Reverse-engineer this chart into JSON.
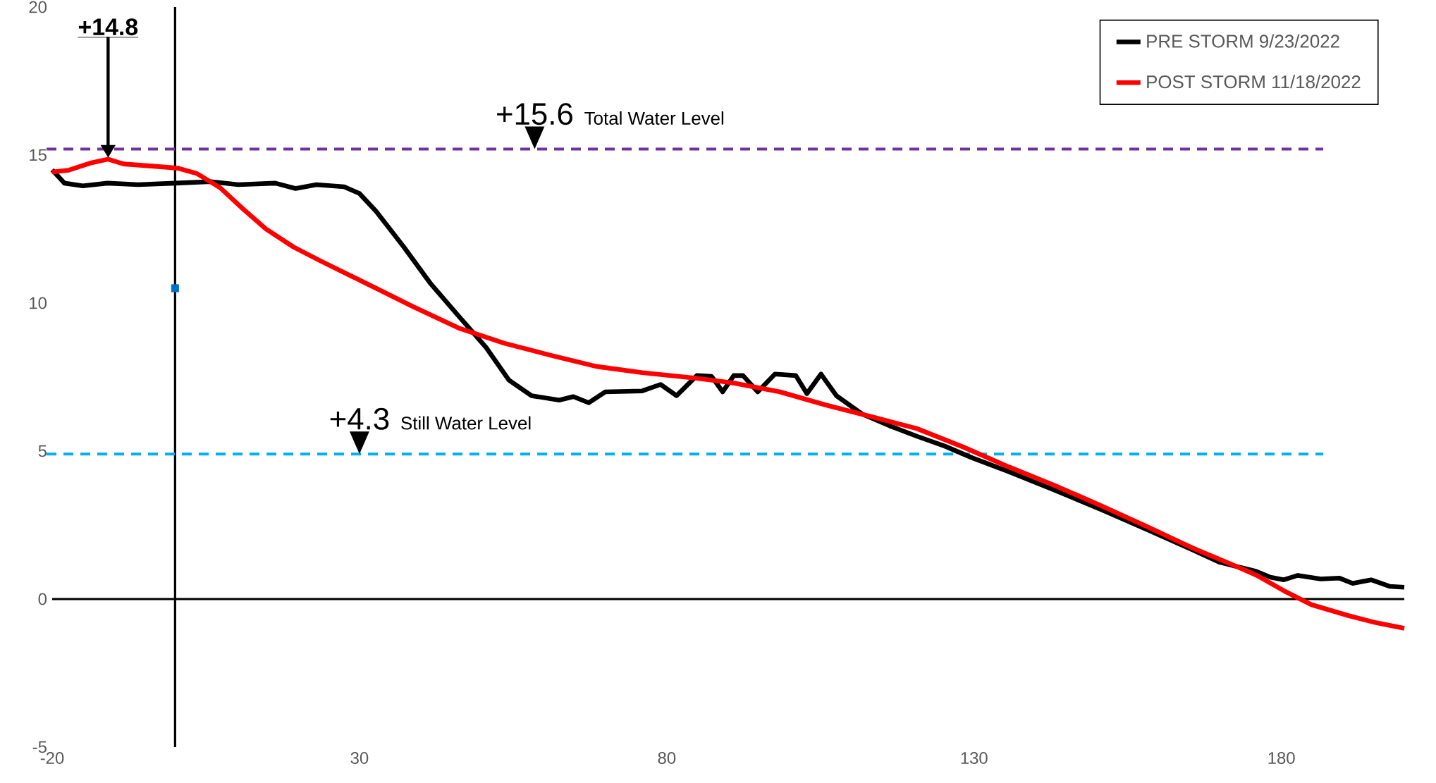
{
  "chart_data": {
    "type": "line",
    "xlim": [
      -20,
      200
    ],
    "ylim": [
      -5,
      20
    ],
    "xticks": [
      -20,
      30,
      80,
      130,
      180
    ],
    "yticks": [
      -5,
      0,
      5,
      10,
      15,
      20
    ],
    "legend": "top right",
    "line_style": "solid",
    "marker": "none",
    "series": [
      {
        "name": "PRE STORM 9/23/2022",
        "color": "#000000",
        "x": [
          -20,
          -18,
          -15,
          -11,
          -6,
          0,
          5.8,
          10.3,
          16.3,
          19.6,
          23,
          27.5,
          30,
          32.7,
          37.2,
          41.6,
          46.1,
          50.6,
          54.3,
          58,
          62.5,
          64.8,
          67.3,
          70,
          76,
          79,
          81.6,
          84.9,
          87.3,
          89.1,
          90.9,
          92.4,
          94.8,
          97.6,
          101,
          102.8,
          105.1,
          107.6,
          111.8,
          116.3,
          120.7,
          125.2,
          129.7,
          135.7,
          143.1,
          150.6,
          158.1,
          165.5,
          170,
          176,
          178.2,
          180.4,
          182.7,
          186.4,
          189.4,
          191.6,
          194.6,
          197.6,
          200
        ],
        "values": [
          14.5,
          14.05,
          13.96,
          14.05,
          14.0,
          14.05,
          14.1,
          14.0,
          14.05,
          13.87,
          14.0,
          13.93,
          13.7,
          13.1,
          11.9,
          10.65,
          9.57,
          8.5,
          7.4,
          6.87,
          6.72,
          6.84,
          6.63,
          7.0,
          7.03,
          7.25,
          6.87,
          7.55,
          7.52,
          7.0,
          7.55,
          7.55,
          7.0,
          7.6,
          7.55,
          6.94,
          7.6,
          6.87,
          6.25,
          5.85,
          5.5,
          5.17,
          4.77,
          4.3,
          3.68,
          3.03,
          2.35,
          1.67,
          1.24,
          0.93,
          0.74,
          0.65,
          0.8,
          0.68,
          0.71,
          0.53,
          0.65,
          0.43,
          0.4
        ]
      },
      {
        "name": "POST STORM 11/18/2022",
        "color": "#ff0000",
        "x": [
          -20,
          -17.3,
          -13.6,
          -10.9,
          -8.4,
          -4.6,
          -0.9,
          0.6,
          3.6,
          7.3,
          11,
          14.8,
          19.3,
          23.7,
          28.2,
          32.7,
          38.7,
          46.1,
          53.6,
          61,
          68.5,
          76,
          84.9,
          90.9,
          98.4,
          105.8,
          113.3,
          120.7,
          128.2,
          135.7,
          143.1,
          150.6,
          158.1,
          165.5,
          171.5,
          176,
          180.4,
          184.9,
          190.9,
          195.4,
          200
        ],
        "values": [
          14.43,
          14.49,
          14.74,
          14.86,
          14.7,
          14.64,
          14.58,
          14.55,
          14.37,
          13.9,
          13.19,
          12.5,
          11.89,
          11.42,
          10.96,
          10.5,
          9.88,
          9.16,
          8.64,
          8.24,
          7.86,
          7.65,
          7.46,
          7.3,
          7.0,
          6.56,
          6.16,
          5.76,
          5.14,
          4.46,
          3.84,
          3.16,
          2.45,
          1.73,
          1.21,
          0.8,
          0.28,
          -0.19,
          -0.56,
          -0.8,
          -0.99
        ]
      },
      {
        "type": "scatter",
        "marker": "square",
        "color": "#0070c0",
        "x": [
          0
        ],
        "values": [
          10.5
        ]
      }
    ],
    "ref_lines": [
      {
        "axis": "y",
        "value": 15.2,
        "label": "Total Water Level",
        "color": "#7030a0",
        "line_style": "dashed"
      },
      {
        "axis": "y",
        "value": 4.9,
        "label": "Still Water Level",
        "color": "#00b0f0",
        "line_style": "dashed"
      }
    ],
    "annotations": [
      "+14.8",
      {
        "text": "+15.6",
        "x": 58.5,
        "y": 15.2
      },
      {
        "text": "+4.3",
        "x": 30,
        "y": 4.9
      }
    ]
  }
}
